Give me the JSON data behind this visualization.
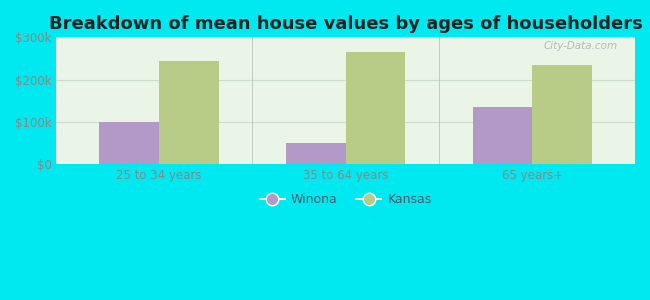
{
  "title": "Breakdown of mean house values by ages of householders",
  "categories": [
    "25 to 34 years",
    "35 to 64 years",
    "65 years+"
  ],
  "winona_values": [
    100000,
    50000,
    135000
  ],
  "kansas_values": [
    245000,
    265000,
    235000
  ],
  "winona_color": "#b399c8",
  "kansas_color": "#b8cc88",
  "ylim": [
    0,
    300000
  ],
  "yticks": [
    0,
    100000,
    200000,
    300000
  ],
  "ytick_labels": [
    "$0",
    "$100k",
    "$200k",
    "$300k"
  ],
  "background_outer": "#00e8f0",
  "legend_winona": "Winona",
  "legend_kansas": "Kansas",
  "title_fontsize": 13,
  "bar_width": 0.32,
  "gridcolor": "#ccddcc",
  "watermark": "City-Data.com"
}
